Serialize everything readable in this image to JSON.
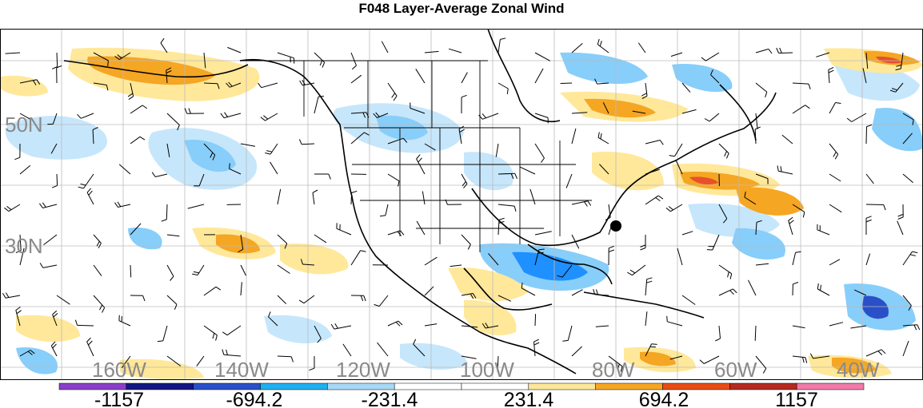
{
  "title": "F048 Layer-Average Zonal Wind",
  "map": {
    "latitude_labels": [
      "50N",
      "30N"
    ],
    "longitude_labels": [
      "160W",
      "140W",
      "120W",
      "100W",
      "80W",
      "60W",
      "40W"
    ],
    "shading_note_colors": {
      "strong_negative": "#1e90ff",
      "moderate_negative": "#87cefa",
      "weak_negative": "#c6e6fb",
      "weak_positive": "#ffe89a",
      "moderate_positive": "#f5a623",
      "strong_positive": "#e8502a"
    },
    "marker_color": "#000000"
  },
  "colorbar": {
    "labels": [
      "-1157",
      "-694.2",
      "-231.4",
      "231.4",
      "694.2",
      "1157"
    ],
    "colors": [
      "#8a3fc8",
      "#141682",
      "#2a50c8",
      "#20b0f0",
      "#a8d8f5",
      "#ffffff",
      "#ffffff",
      "#fce79a",
      "#f5a623",
      "#e84d16",
      "#b42a1f",
      "#f07aa8"
    ]
  }
}
